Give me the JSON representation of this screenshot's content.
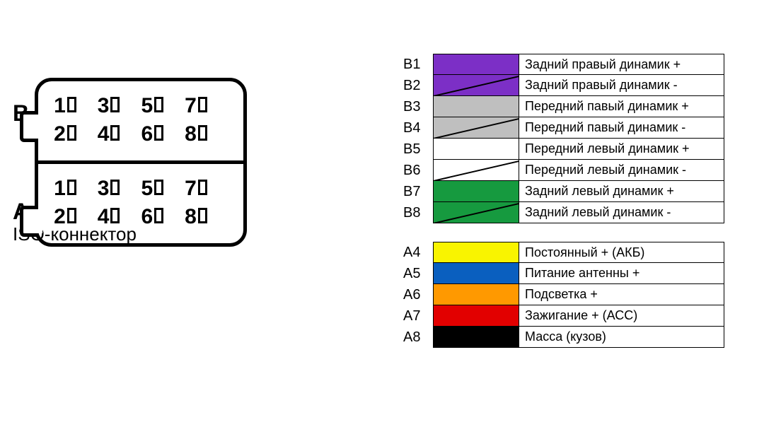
{
  "title": "ISO-коннектор",
  "connector": {
    "blocks": [
      {
        "label": "B",
        "rows": [
          [
            1,
            3,
            5,
            7
          ],
          [
            2,
            4,
            6,
            8
          ]
        ]
      },
      {
        "label": "A",
        "rows": [
          [
            1,
            3,
            5,
            7
          ],
          [
            2,
            4,
            6,
            8
          ]
        ]
      }
    ]
  },
  "legend": {
    "groups": [
      {
        "rows": [
          {
            "id": "B1",
            "color": "#7c2fc6",
            "stripe": false,
            "desc": "Задний правый динамик +"
          },
          {
            "id": "B2",
            "color": "#7c2fc6",
            "stripe": true,
            "desc": "Задний правый динамик -"
          },
          {
            "id": "B3",
            "color": "#bfbfbf",
            "stripe": false,
            "desc": "Передний павый динамик +"
          },
          {
            "id": "B4",
            "color": "#bfbfbf",
            "stripe": true,
            "desc": "Передний павый динамик -"
          },
          {
            "id": "B5",
            "color": "#ffffff",
            "stripe": false,
            "desc": "Передний левый динамик +"
          },
          {
            "id": "B6",
            "color": "#ffffff",
            "stripe": true,
            "desc": "Передний левый динамик -"
          },
          {
            "id": "B7",
            "color": "#169a3f",
            "stripe": false,
            "desc": "Задний левый динамик +"
          },
          {
            "id": "B8",
            "color": "#169a3f",
            "stripe": true,
            "desc": "Задний левый динамик -"
          }
        ]
      },
      {
        "rows": [
          {
            "id": "A4",
            "color": "#f9f400",
            "stripe": false,
            "desc": "Постоянный + (АКБ)"
          },
          {
            "id": "A5",
            "color": "#0a5fbf",
            "stripe": false,
            "desc": "Питание антенны +"
          },
          {
            "id": "A6",
            "color": "#ff9900",
            "stripe": false,
            "desc": "Подсветка +"
          },
          {
            "id": "A7",
            "color": "#e20000",
            "stripe": false,
            "desc": "Зажигание + (АСС)"
          },
          {
            "id": "A8",
            "color": "#000000",
            "stripe": false,
            "desc": "Масса (кузов)"
          }
        ]
      }
    ]
  },
  "style": {
    "background": "#ffffff",
    "border_color": "#000000",
    "label_fontsize": 20,
    "desc_fontsize": 18,
    "pin_fontsize": 30,
    "title_fontsize": 26
  }
}
